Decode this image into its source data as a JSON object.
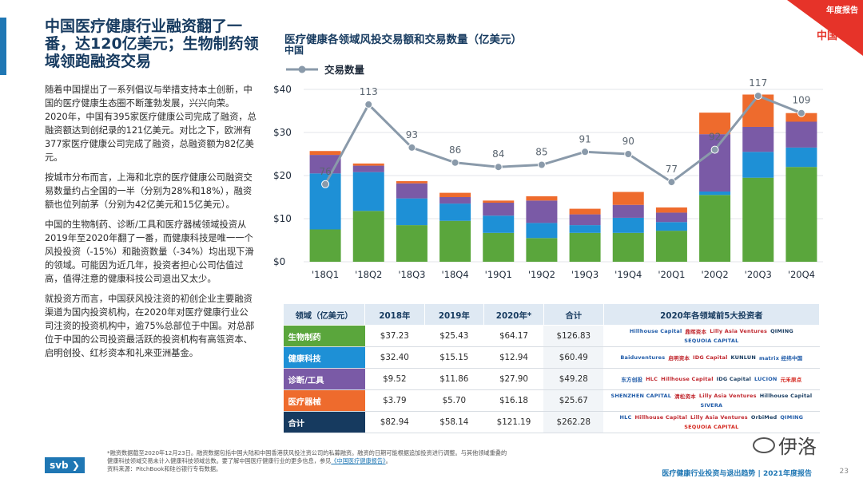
{
  "header": {
    "headline": "中国医疗健康行业融资翻了一番，达120亿美元；生物制药领域领跑融资交易",
    "badge_top": "年度报告",
    "badge_region": "中国"
  },
  "body": {
    "paragraphs": [
      "随着中国提出了一系列倡议与举措支持本土创新，中国的医疗健康生态圈不断蓬勃发展，兴兴向荣。2020年，中国有395家医疗健康公司完成了融资，总融资额达到创纪录的121亿美元。对比之下，欧洲有377家医疗健康公司完成了融资，总融资额为82亿美元。",
      "按城市分布而言，上海和北京的医疗健康公司融资交易数量约占全国的一半（分别为28%和18%），融资额也位列前茅（分别为42亿美元和15亿美元）。",
      "中国的生物制药、诊断/工具和医疗器械领域投资从2019年至2020年翻了一番，而健康科技是唯一一个风投投资（-15%）和融资数量（-34%）均出现下滑的领域。可能因为近几年，投资者担心公司估值过高，值得注意的健康科技公司退出又太少。",
      "就投资方而言，中国获风投注资的初创企业主要融资渠道为国内投资机构，在2020年对医疗健康行业公司注资的投资机构中，逾75%总部位于中国。对总部位于中国的公司投资最活跃的投资机构有高瓴资本、启明创投、红杉资本和礼来亚洲基金。"
    ]
  },
  "chart_data": {
    "type": "bar",
    "title": "医疗健康各领域风投交易额和交易数量（亿美元）",
    "subtitle": "中国",
    "categories": [
      "'18Q1",
      "'18Q2",
      "'18Q3",
      "'18Q4",
      "'19Q1",
      "'19Q2",
      "'19Q3",
      "'19Q4",
      "'20Q1",
      "'20Q2",
      "'20Q3",
      "'20Q4"
    ],
    "stacked": true,
    "series": [
      {
        "name": "生物制药",
        "color": "#5aa63c",
        "values": [
          7.5,
          11.8,
          8.5,
          9.5,
          6.7,
          5.5,
          6.7,
          6.7,
          7.2,
          15.5,
          19.5,
          22.0
        ]
      },
      {
        "name": "健康科技",
        "color": "#1e90d6",
        "values": [
          13.0,
          9.0,
          6.2,
          4.0,
          4.0,
          3.5,
          1.8,
          3.5,
          2.0,
          0.8,
          6.0,
          4.5
        ]
      },
      {
        "name": "诊断/工具",
        "color": "#7a5aa6",
        "values": [
          4.3,
          1.5,
          3.5,
          1.5,
          3.0,
          5.2,
          2.5,
          3.0,
          2.2,
          13.3,
          5.8,
          6.0
        ]
      },
      {
        "name": "医疗器械",
        "color": "#ee6b2d",
        "values": [
          0.9,
          0.5,
          0.5,
          1.0,
          0.5,
          1.0,
          1.3,
          3.0,
          1.2,
          5.0,
          7.5,
          2.0
        ]
      }
    ],
    "line": {
      "name": "交易数量",
      "color": "#8a9aaa",
      "values": [
        76,
        113,
        93,
        86,
        84,
        85,
        91,
        90,
        77,
        92,
        117,
        109
      ]
    },
    "yticks": [
      "$0",
      "$10",
      "$20",
      "$30",
      "$40"
    ],
    "ylim": [
      0,
      40
    ],
    "line_ylim": [
      40,
      120
    ],
    "grid": true,
    "legend": "top-left"
  },
  "table": {
    "headers": [
      "领域（亿美元）",
      "2018年",
      "2019年",
      "2020年*",
      "合计",
      "2020年各领域前5大投资者"
    ],
    "rows": [
      {
        "label": "生物制药",
        "color": "#5aa63c",
        "v2018": "$37.23",
        "v2019": "$25.43",
        "v2020": "$64.17",
        "total": "$126.83",
        "investors": [
          "Hillhouse Capital",
          "鼎晖资本",
          "Lilly Asia Ventures",
          "QIMING",
          "SEQUOIA CAPITAL"
        ]
      },
      {
        "label": "健康科技",
        "color": "#1e90d6",
        "v2018": "$32.40",
        "v2019": "$15.15",
        "v2020": "$12.94",
        "total": "$60.49",
        "investors": [
          "Baiduventures",
          "启明资本",
          "IDG Capital",
          "KUNLUN",
          "matrix 经纬中国"
        ]
      },
      {
        "label": "诊断/工具",
        "color": "#7a5aa6",
        "v2018": "$9.52",
        "v2019": "$11.86",
        "v2020": "$27.90",
        "total": "$49.28",
        "investors": [
          "东方创投",
          "HLC",
          "Hillhouse Capital",
          "IDG Capital",
          "LUCION",
          "元禾原点"
        ]
      },
      {
        "label": "医疗器械",
        "color": "#ee6b2d",
        "v2018": "$3.79",
        "v2019": "$5.70",
        "v2020": "$16.18",
        "total": "$25.67",
        "investors": [
          "SHENZHEN CAPITAL",
          "清松资本",
          "Lilly Asia Ventures",
          "Hillhouse Capital",
          "SIVERA"
        ]
      },
      {
        "label": "合计",
        "color": "#163a5f",
        "v2018": "$82.94",
        "v2019": "$58.14",
        "v2020": "$121.19",
        "total": "$262.28",
        "investors": [
          "HLC",
          "Hillhouse Capital",
          "Lilly Asia Ventures",
          "OrbiMed",
          "QIMING",
          "SEQUOIA CAPITAL"
        ]
      }
    ]
  },
  "footer": {
    "note_line1": "*融资数据截至2020年12月23日。融资数据包括中国大陆和中国香港获风投注资公司的私募融资。融资的日期可能根据追加投资进行调整。与其他领域重叠的",
    "note_line2_a": "健康科技领域交易未计入健康科技领域总数。要了解中国医疗健康行业的更多信息，参见",
    "note_link": "《中国医疗健康报告》",
    "note_line2_b": "。",
    "source": "资料来源：PitchBook和硅谷银行专有数据。",
    "logo": "svb",
    "report_name": "医疗健康行业投资与退出趋势 | 2021年度报告",
    "page": "23",
    "watermark": "伊洛"
  }
}
